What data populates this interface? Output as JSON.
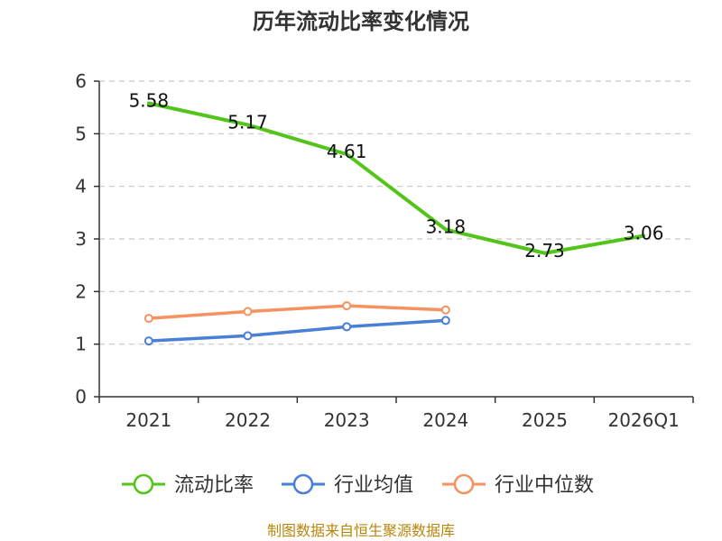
{
  "chart_data": {
    "type": "line",
    "title": "历年流动比率变化情况",
    "categories": [
      "2021",
      "2022",
      "2023",
      "2024",
      "2025",
      "2026Q1"
    ],
    "ylim": [
      0,
      6
    ],
    "yticks": [
      0,
      1,
      2,
      3,
      4,
      5,
      6
    ],
    "grid": true,
    "legend_position": "bottom",
    "series": [
      {
        "name": "流动比率",
        "color": "#52c41a",
        "values": [
          5.58,
          5.17,
          4.61,
          3.18,
          2.73,
          3.06
        ],
        "show_labels": true
      },
      {
        "name": "行业均值",
        "color": "#4a7fd6",
        "values": [
          1.06,
          1.16,
          1.33,
          1.45,
          null,
          null
        ],
        "show_labels": false
      },
      {
        "name": "行业中位数",
        "color": "#f5925f",
        "values": [
          1.49,
          1.62,
          1.73,
          1.65,
          null,
          null
        ],
        "show_labels": false
      }
    ],
    "source": "制图数据来自恒生聚源数据库"
  }
}
